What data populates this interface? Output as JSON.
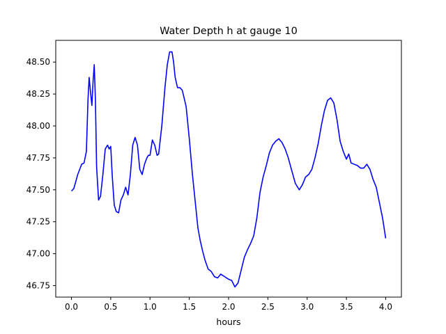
{
  "chart_data": {
    "type": "line",
    "title": "Water Depth h at gauge 10",
    "xlabel": "hours",
    "ylabel": "",
    "xlim": [
      -0.2,
      4.2
    ],
    "ylim": [
      46.66,
      48.67
    ],
    "xticks": [
      0.0,
      0.5,
      1.0,
      1.5,
      2.0,
      2.5,
      3.0,
      3.5,
      4.0
    ],
    "xtick_labels": [
      "0.0",
      "0.5",
      "1.0",
      "1.5",
      "2.0",
      "2.5",
      "3.0",
      "3.5",
      "4.0"
    ],
    "yticks": [
      46.75,
      47.0,
      47.25,
      47.5,
      47.75,
      48.0,
      48.25,
      48.5
    ],
    "ytick_labels": [
      "46.75",
      "47.00",
      "47.25",
      "47.50",
      "47.75",
      "48.00",
      "48.25",
      "48.50"
    ],
    "grid": false,
    "series": [
      {
        "color": "#0000ff",
        "x": [
          0.0,
          0.03,
          0.08,
          0.13,
          0.16,
          0.19,
          0.21,
          0.225,
          0.245,
          0.26,
          0.275,
          0.29,
          0.305,
          0.32,
          0.345,
          0.37,
          0.4,
          0.43,
          0.46,
          0.48,
          0.5,
          0.52,
          0.545,
          0.57,
          0.6,
          0.63,
          0.66,
          0.69,
          0.72,
          0.75,
          0.78,
          0.81,
          0.84,
          0.87,
          0.9,
          0.93,
          0.96,
          0.98,
          1.0,
          1.03,
          1.06,
          1.09,
          1.11,
          1.15,
          1.19,
          1.22,
          1.25,
          1.28,
          1.3,
          1.32,
          1.35,
          1.38,
          1.41,
          1.43,
          1.46,
          1.5,
          1.54,
          1.58,
          1.61,
          1.64,
          1.67,
          1.7,
          1.74,
          1.78,
          1.82,
          1.86,
          1.9,
          1.95,
          2.0,
          2.04,
          2.08,
          2.12,
          2.16,
          2.2,
          2.24,
          2.28,
          2.32,
          2.36,
          2.4,
          2.44,
          2.48,
          2.52,
          2.56,
          2.6,
          2.64,
          2.68,
          2.72,
          2.76,
          2.8,
          2.85,
          2.9,
          2.94,
          2.98,
          3.02,
          3.06,
          3.1,
          3.14,
          3.18,
          3.22,
          3.26,
          3.3,
          3.34,
          3.38,
          3.42,
          3.46,
          3.5,
          3.53,
          3.56,
          3.6,
          3.64,
          3.68,
          3.72,
          3.76,
          3.8,
          3.84,
          3.88,
          3.92,
          3.96,
          4.0
        ],
        "y": [
          47.49,
          47.51,
          47.62,
          47.7,
          47.71,
          47.8,
          48.2,
          48.38,
          48.25,
          48.16,
          48.35,
          48.48,
          48.2,
          47.68,
          47.42,
          47.45,
          47.62,
          47.82,
          47.85,
          47.82,
          47.84,
          47.6,
          47.38,
          47.33,
          47.32,
          47.42,
          47.46,
          47.52,
          47.46,
          47.62,
          47.85,
          47.91,
          47.85,
          47.66,
          47.62,
          47.7,
          47.75,
          47.77,
          47.77,
          47.89,
          47.85,
          47.77,
          47.78,
          48.0,
          48.3,
          48.48,
          48.58,
          48.58,
          48.5,
          48.38,
          48.3,
          48.3,
          48.28,
          48.23,
          48.15,
          47.9,
          47.62,
          47.38,
          47.2,
          47.1,
          47.02,
          46.95,
          46.88,
          46.86,
          46.82,
          46.81,
          46.84,
          46.82,
          46.8,
          46.79,
          46.74,
          46.77,
          46.87,
          46.97,
          47.03,
          47.08,
          47.14,
          47.28,
          47.48,
          47.6,
          47.69,
          47.79,
          47.85,
          47.88,
          47.9,
          47.87,
          47.82,
          47.75,
          47.66,
          47.55,
          47.5,
          47.54,
          47.6,
          47.62,
          47.66,
          47.75,
          47.86,
          48.0,
          48.12,
          48.2,
          48.22,
          48.18,
          48.05,
          47.88,
          47.8,
          47.74,
          47.78,
          47.71,
          47.7,
          47.69,
          47.67,
          47.67,
          47.7,
          47.66,
          47.58,
          47.52,
          47.4,
          47.28,
          47.12
        ]
      }
    ]
  }
}
